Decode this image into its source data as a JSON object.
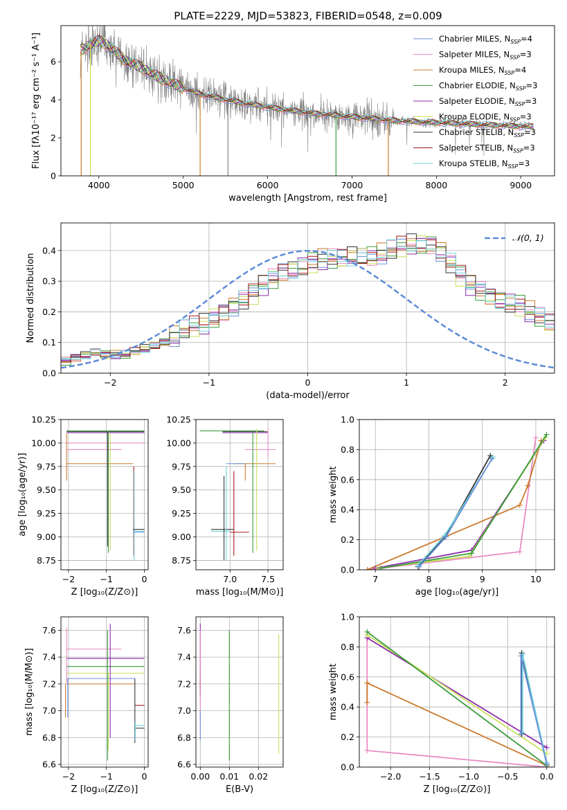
{
  "title": "PLATE=2229, MJD=53823, FIBERID=0548, z=0.009",
  "colors": {
    "chabrier_miles": "#6a8fd8",
    "salpeter_miles": "#e98ac2",
    "kroupa_miles": "#cc7a2e",
    "chabrier_elodie": "#3a9a3a",
    "salpeter_elodie": "#8a2aaa",
    "kroupa_elodie": "#c8e05a",
    "chabrier_stelib": "#333333",
    "salpeter_stelib": "#a01818",
    "kroupa_stelib": "#6fd3dd",
    "data": "#808080",
    "gauss": "#5b8bd6"
  },
  "chart_data": [
    {
      "id": "spectrum",
      "type": "line",
      "xlabel": "wavelength [Angstrom, rest frame]",
      "ylabel": "Flux [fλ10⁻¹⁷ erg cm⁻² s⁻¹ A⁻¹]",
      "xlim": [
        3550,
        9400
      ],
      "ylim": [
        0,
        7.9
      ],
      "xticks": [
        4000,
        5000,
        6000,
        7000,
        8000,
        9000
      ],
      "yticks": [
        0,
        2,
        4,
        6
      ],
      "legend_position": "top-right",
      "legend": [
        {
          "name": "Chabrier MILES, N",
          "sub": "SSP",
          "tail": "=4",
          "color": "#6a8fd8"
        },
        {
          "name": "Salpeter MILES, N",
          "sub": "SSP",
          "tail": "=3",
          "color": "#e98ac2"
        },
        {
          "name": "Kroupa MILES, N",
          "sub": "SSP",
          "tail": "=4",
          "color": "#cc7a2e"
        },
        {
          "name": "Chabrier ELODIE, N",
          "sub": "SSP",
          "tail": "=3",
          "color": "#3a9a3a"
        },
        {
          "name": "Salpeter ELODIE, N",
          "sub": "SSP",
          "tail": "=3",
          "color": "#8a2aaa"
        },
        {
          "name": "Kroupa ELODIE, N",
          "sub": "SSP",
          "tail": "=3",
          "color": "#c8e05a"
        },
        {
          "name": "Chabrier STELIB, N",
          "sub": "SSP",
          "tail": "=3",
          "color": "#333333"
        },
        {
          "name": "Salpeter STELIB, N",
          "sub": "SSP",
          "tail": "=3",
          "color": "#a01818"
        },
        {
          "name": "Kroupa STELIB, N",
          "sub": "SSP",
          "tail": "=3",
          "color": "#6fd3dd"
        }
      ],
      "continuum": [
        [
          3780,
          6.6
        ],
        [
          3900,
          6.9
        ],
        [
          4000,
          7.1
        ],
        [
          4100,
          6.9
        ],
        [
          4200,
          6.5
        ],
        [
          4300,
          6.1
        ],
        [
          4500,
          5.7
        ],
        [
          4700,
          5.2
        ],
        [
          5000,
          4.6
        ],
        [
          5200,
          4.3
        ],
        [
          5500,
          4.0
        ],
        [
          6000,
          3.6
        ],
        [
          6500,
          3.3
        ],
        [
          7000,
          3.1
        ],
        [
          7500,
          2.9
        ],
        [
          8000,
          2.8
        ],
        [
          8500,
          2.7
        ],
        [
          9000,
          2.6
        ],
        [
          9150,
          2.6
        ]
      ],
      "dropouts": [
        {
          "x": 3790,
          "color": "#cc7a2e"
        },
        {
          "x": 3900,
          "color": "#c8e05a"
        },
        {
          "x": 5200,
          "color": "#cc7a2e"
        },
        {
          "x": 5530,
          "color": "#808080"
        },
        {
          "x": 6810,
          "color": "#3a9a3a"
        },
        {
          "x": 7430,
          "color": "#cc7a2e"
        }
      ]
    },
    {
      "id": "residuals",
      "type": "step",
      "xlabel": "(data-model)/error",
      "ylabel": "Normed distribution",
      "xlim": [
        -2.5,
        2.5
      ],
      "ylim": [
        0,
        0.49
      ],
      "xticks": [
        -2,
        -1,
        0,
        1,
        2
      ],
      "yticks": [
        0.0,
        0.1,
        0.2,
        0.3,
        0.4
      ],
      "legend": "𝒩(0, 1)",
      "legend_position": "top-right",
      "grid": true,
      "bin_width": 0.1,
      "bin_start": -2.5,
      "base_hist": [
        0.04,
        0.05,
        0.06,
        0.07,
        0.06,
        0.06,
        0.06,
        0.07,
        0.08,
        0.09,
        0.1,
        0.12,
        0.14,
        0.15,
        0.16,
        0.18,
        0.2,
        0.22,
        0.24,
        0.26,
        0.29,
        0.31,
        0.33,
        0.34,
        0.35,
        0.36,
        0.37,
        0.37,
        0.37,
        0.38,
        0.38,
        0.38,
        0.39,
        0.4,
        0.41,
        0.42,
        0.42,
        0.42,
        0.4,
        0.36,
        0.32,
        0.29,
        0.27,
        0.25,
        0.24,
        0.23,
        0.22,
        0.2,
        0.18,
        0.16,
        0.14,
        0.12,
        0.1,
        0.09,
        0.08,
        0.07,
        0.06,
        0.05,
        0.05,
        0.04,
        0.04,
        0.04,
        0.03,
        0.03,
        0.03,
        0.03,
        0.03,
        0.03,
        0.02,
        0.02,
        0.02,
        0.02,
        0.02,
        0.02,
        0.02,
        0.02,
        0.02,
        0.02,
        0.02,
        0.02
      ],
      "gauss_mean": 0,
      "gauss_sigma": 1
    },
    {
      "id": "age_vs_Z",
      "type": "errorbar",
      "xlabel": "Z [log₁₀(Z/Z⊙)]",
      "ylabel": "age  [log₁₀(age/yr)]",
      "xlim": [
        -2.2,
        0.1
      ],
      "ylim": [
        8.65,
        10.25
      ],
      "xticks": [
        -2,
        -1,
        0
      ],
      "yticks": [
        8.75,
        9.0,
        9.25,
        9.5,
        9.75,
        10.0,
        10.25
      ],
      "grid": true,
      "segments": [
        {
          "c": "#3a9a3a",
          "h": [
            -2.05,
            0.0,
            10.13
          ]
        },
        {
          "c": "#333333",
          "h": [
            -2.05,
            0.0,
            10.12
          ]
        },
        {
          "c": "#8a2aaa",
          "h": [
            -2.05,
            0.0,
            10.11
          ]
        },
        {
          "c": "#e98ac2",
          "h": [
            -2.05,
            0.0,
            10.0
          ]
        },
        {
          "c": "#e98ac2",
          "h": [
            -2.05,
            -0.6,
            9.93
          ]
        },
        {
          "c": "#cc7a2e",
          "h": [
            -2.05,
            -0.3,
            9.78
          ]
        },
        {
          "c": "#cc7a2e",
          "v": [
            -2.05,
            9.6,
            10.1
          ]
        },
        {
          "c": "#c8e05a",
          "v": [
            -0.9,
            8.85,
            10.1
          ]
        },
        {
          "c": "#3a9a3a",
          "v": [
            -0.95,
            8.83,
            10.13
          ]
        },
        {
          "c": "#333333",
          "v": [
            -0.97,
            8.9,
            10.12
          ]
        },
        {
          "c": "#a01818",
          "v": [
            -0.28,
            8.8,
            9.75
          ]
        },
        {
          "c": "#6fd3dd",
          "v": [
            -0.27,
            8.75,
            9.7
          ]
        },
        {
          "c": "#333333",
          "h": [
            -0.3,
            0.0,
            9.08
          ]
        },
        {
          "c": "#6fd3dd",
          "h": [
            -0.3,
            0.0,
            9.06
          ]
        },
        {
          "c": "#6a8fd8",
          "h": [
            -0.3,
            0.0,
            9.05
          ]
        }
      ]
    },
    {
      "id": "age_vs_mass",
      "type": "errorbar",
      "xlabel": "mass [log₁₀(M/M⊙)]",
      "ylabel": "",
      "xlim": [
        6.55,
        7.7
      ],
      "ylim": [
        8.65,
        10.25
      ],
      "xticks": [
        7.0,
        7.5
      ],
      "yticks": [
        8.75,
        9.0,
        9.25,
        9.5,
        9.75,
        10.0,
        10.25
      ],
      "grid": true,
      "segments": [
        {
          "c": "#3a9a3a",
          "h": [
            6.6,
            7.45,
            10.13
          ]
        },
        {
          "c": "#333333",
          "h": [
            6.9,
            7.5,
            10.12
          ]
        },
        {
          "c": "#8a2aaa",
          "h": [
            6.9,
            7.5,
            10.11
          ]
        },
        {
          "c": "#e98ac2",
          "h": [
            7.2,
            7.6,
            9.93
          ]
        },
        {
          "c": "#cc7a2e",
          "h": [
            7.05,
            7.6,
            9.78
          ]
        },
        {
          "c": "#6a8fd8",
          "h": [
            6.95,
            7.2,
            9.78
          ]
        },
        {
          "c": "#333333",
          "h": [
            6.75,
            7.05,
            9.08
          ]
        },
        {
          "c": "#6fd3dd",
          "h": [
            6.75,
            7.0,
            9.06
          ]
        },
        {
          "c": "#a01818",
          "h": [
            7.0,
            7.25,
            9.05
          ]
        },
        {
          "c": "#e98ac2",
          "v": [
            7.5,
            9.85,
            10.15
          ]
        },
        {
          "c": "#c8e05a",
          "v": [
            7.35,
            8.85,
            10.15
          ]
        },
        {
          "c": "#3a9a3a",
          "v": [
            7.3,
            8.83,
            10.13
          ]
        },
        {
          "c": "#a01818",
          "v": [
            7.05,
            8.8,
            9.7
          ]
        },
        {
          "c": "#6fd3dd",
          "v": [
            6.95,
            8.75,
            9.75
          ]
        },
        {
          "c": "#333333",
          "v": [
            6.92,
            8.75,
            9.65
          ]
        },
        {
          "c": "#cc7a2e",
          "v": [
            7.2,
            9.6,
            9.78
          ]
        }
      ]
    },
    {
      "id": "weight_vs_age",
      "type": "line",
      "xlabel": "age  [log₁₀(age/yr)]",
      "ylabel": "mass weight",
      "xlim": [
        6.7,
        10.35
      ],
      "ylim": [
        0,
        1.0
      ],
      "xticks": [
        7,
        8,
        9,
        10
      ],
      "yticks": [
        0.0,
        0.2,
        0.4,
        0.6,
        0.8,
        1.0
      ],
      "grid": true,
      "series": [
        {
          "c": "#e98ac2",
          "points": [
            [
              6.85,
              0.0
            ],
            [
              9.7,
              0.12
            ],
            [
              10.0,
              0.88
            ]
          ]
        },
        {
          "c": "#cc7a2e",
          "points": [
            [
              6.85,
              0.0
            ],
            [
              9.7,
              0.43
            ],
            [
              9.85,
              0.56
            ],
            [
              10.1,
              0.86
            ]
          ]
        },
        {
          "c": "#8a2aaa",
          "points": [
            [
              7.0,
              0.01
            ],
            [
              8.8,
              0.13
            ],
            [
              10.15,
              0.86
            ]
          ]
        },
        {
          "c": "#c8e05a",
          "points": [
            [
              7.05,
              0.01
            ],
            [
              8.75,
              0.09
            ],
            [
              10.18,
              0.88
            ]
          ]
        },
        {
          "c": "#3a9a3a",
          "points": [
            [
              7.1,
              0.01
            ],
            [
              8.8,
              0.11
            ],
            [
              10.2,
              0.9
            ]
          ]
        },
        {
          "c": "#333333",
          "points": [
            [
              7.8,
              0.02
            ],
            [
              8.3,
              0.22
            ],
            [
              9.15,
              0.76
            ]
          ]
        },
        {
          "c": "#6fd3dd",
          "points": [
            [
              7.8,
              0.03
            ],
            [
              8.3,
              0.23
            ],
            [
              9.2,
              0.75
            ]
          ]
        },
        {
          "c": "#6a8fd8",
          "points": [
            [
              7.82,
              0.02
            ],
            [
              8.32,
              0.22
            ],
            [
              9.18,
              0.74
            ]
          ]
        }
      ]
    },
    {
      "id": "mass_vs_Z",
      "type": "errorbar",
      "xlabel": "Z [log₁₀(Z/Z⊙)]",
      "ylabel": "mass [log₁₀(M/M⊙)]",
      "xlim": [
        -2.2,
        0.1
      ],
      "ylim": [
        6.58,
        7.7
      ],
      "xticks": [
        -2,
        -1,
        0
      ],
      "yticks": [
        6.6,
        6.8,
        7.0,
        7.2,
        7.4,
        7.6
      ],
      "grid": true,
      "segments": [
        {
          "c": "#e98ac2",
          "h": [
            -2.05,
            -0.6,
            7.46
          ]
        },
        {
          "c": "#8a2aaa",
          "h": [
            -2.05,
            0.0,
            7.39
          ]
        },
        {
          "c": "#3a9a3a",
          "h": [
            -2.05,
            0.0,
            7.33
          ]
        },
        {
          "c": "#c8e05a",
          "h": [
            -2.05,
            0.0,
            7.28
          ]
        },
        {
          "c": "#6a8fd8",
          "h": [
            -2.05,
            -0.25,
            7.24
          ]
        },
        {
          "c": "#cc7a2e",
          "h": [
            -2.05,
            -0.25,
            7.2
          ]
        },
        {
          "c": "#a01818",
          "h": [
            -0.25,
            0.0,
            7.04
          ]
        },
        {
          "c": "#6fd3dd",
          "h": [
            -0.25,
            0.0,
            6.89
          ]
        },
        {
          "c": "#333333",
          "h": [
            -0.25,
            0.0,
            6.87
          ]
        },
        {
          "c": "#e98ac2",
          "v": [
            -2.05,
            7.2,
            7.62
          ]
        },
        {
          "c": "#cc7a2e",
          "v": [
            -2.08,
            6.95,
            7.2
          ]
        },
        {
          "c": "#6a8fd8",
          "v": [
            -2.02,
            6.95,
            7.24
          ]
        },
        {
          "c": "#3a9a3a",
          "v": [
            -0.97,
            6.63,
            7.6
          ]
        },
        {
          "c": "#8a2aaa",
          "v": [
            -0.9,
            6.8,
            7.65
          ]
        },
        {
          "c": "#c8e05a",
          "v": [
            -0.95,
            6.7,
            7.28
          ]
        },
        {
          "c": "#333333",
          "v": [
            -0.25,
            6.76,
            7.24
          ]
        },
        {
          "c": "#6fd3dd",
          "v": [
            -0.24,
            6.78,
            6.92
          ]
        }
      ]
    },
    {
      "id": "mass_vs_EBV",
      "type": "errorbar",
      "xlabel": "E(B-V)",
      "ylabel": "",
      "xlim": [
        -0.0015,
        0.0285
      ],
      "ylim": [
        6.58,
        7.7
      ],
      "xticks": [
        0.0,
        0.01,
        0.02
      ],
      "tick_labels": [
        "0.00",
        "0.01",
        "0.02"
      ],
      "yticks": [
        6.6,
        6.8,
        7.0,
        7.2,
        7.4,
        7.6
      ],
      "grid": true,
      "segments": [
        {
          "c": "#8a2aaa",
          "v": [
            0.0,
            7.1,
            7.65
          ]
        },
        {
          "c": "#a01818",
          "v": [
            0.0,
            7.15,
            7.25
          ]
        },
        {
          "c": "#e98ac2",
          "v": [
            0.0,
            6.9,
            7.6
          ]
        },
        {
          "c": "#6a8fd8",
          "v": [
            0.0,
            6.78,
            7.0
          ]
        },
        {
          "c": "#3a9a3a",
          "v": [
            0.01,
            6.63,
            7.6
          ]
        },
        {
          "c": "#c8e05a",
          "v": [
            0.027,
            6.68,
            7.57
          ]
        }
      ]
    },
    {
      "id": "weight_vs_Z",
      "type": "line",
      "xlabel": "Z [log₁₀(Z/Z⊙)]",
      "ylabel": "mass weight",
      "xlim": [
        -2.4,
        0.1
      ],
      "ylim": [
        0,
        1.0
      ],
      "xticks": [
        -2.0,
        -1.5,
        -1.0,
        -0.5,
        0.0
      ],
      "tick_labels": [
        "−2.0",
        "−1.5",
        "−1.0",
        "−0.5",
        "0.0"
      ],
      "yticks": [
        0.0,
        0.2,
        0.4,
        0.6,
        0.8,
        1.0
      ],
      "grid": true,
      "series": [
        {
          "c": "#e98ac2",
          "points": [
            [
              -2.3,
              0.88
            ],
            [
              -2.3,
              0.11
            ],
            [
              0.0,
              0.0
            ]
          ]
        },
        {
          "c": "#cc7a2e",
          "points": [
            [
              -2.3,
              0.43
            ],
            [
              -2.3,
              0.56
            ],
            [
              0.0,
              0.01
            ]
          ]
        },
        {
          "c": "#8a2aaa",
          "points": [
            [
              -2.3,
              0.86
            ],
            [
              0.0,
              0.13
            ]
          ]
        },
        {
          "c": "#c8e05a",
          "points": [
            [
              -2.3,
              0.88
            ],
            [
              0.0,
              0.09
            ]
          ]
        },
        {
          "c": "#3a9a3a",
          "points": [
            [
              -2.3,
              0.9
            ],
            [
              0.0,
              0.01
            ]
          ]
        },
        {
          "c": "#333333",
          "points": [
            [
              -0.32,
              0.22
            ],
            [
              -0.32,
              0.76
            ],
            [
              0.0,
              0.02
            ]
          ]
        },
        {
          "c": "#6fd3dd",
          "points": [
            [
              -0.31,
              0.23
            ],
            [
              -0.31,
              0.75
            ],
            [
              0.0,
              0.03
            ]
          ]
        },
        {
          "c": "#6a8fd8",
          "points": [
            [
              -0.33,
              0.22
            ],
            [
              -0.33,
              0.74
            ],
            [
              0.0,
              0.02
            ]
          ]
        }
      ]
    }
  ]
}
